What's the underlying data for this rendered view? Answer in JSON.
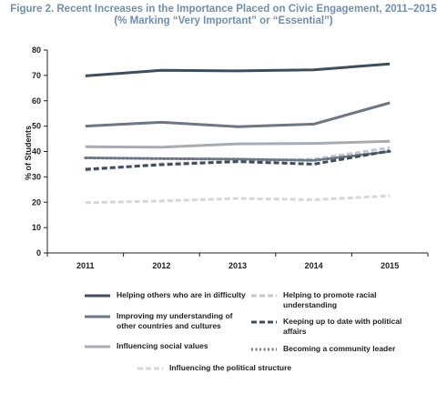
{
  "chart_data": {
    "type": "line",
    "title_line1": "Figure 2. Recent Increases in the Importance Placed on Civic Engagement, 2011–2015",
    "title_line2": "(% Marking “Very Important” or “Essential”)",
    "ylabel": "% of Students",
    "xlabel": "",
    "categories": [
      "2011",
      "2012",
      "2013",
      "2014",
      "2015"
    ],
    "ylim": [
      0,
      80
    ],
    "yticks": [
      "0",
      "10",
      "20",
      "30",
      "40",
      "50",
      "60",
      "70",
      "80"
    ],
    "grid": false,
    "legend_placement": "bottom",
    "series": [
      {
        "name": "Helping others who are in difficulty",
        "values": [
          69.8,
          72.0,
          71.8,
          72.2,
          74.5
        ],
        "color": "#3d4e60",
        "style": "solid"
      },
      {
        "name": "Improving my understanding of other countries and cultures",
        "values": [
          50.0,
          51.5,
          49.8,
          50.8,
          59.2
        ],
        "color": "#6c7686",
        "style": "solid"
      },
      {
        "name": "Influencing social values",
        "values": [
          41.9,
          41.7,
          43.0,
          43.2,
          44.0
        ],
        "color": "#a7abb2",
        "style": "solid"
      },
      {
        "name": "Helping to promote racial understanding",
        "values": [
          32.5,
          35.2,
          36.2,
          37.0,
          41.5
        ],
        "color": "#c4c7cc",
        "style": "dash"
      },
      {
        "name": "Keeping up to date with political affairs",
        "values": [
          33.0,
          34.8,
          36.0,
          35.0,
          40.2
        ],
        "color": "#3d4e60",
        "style": "dash"
      },
      {
        "name": "Becoming a community leader",
        "values": [
          37.5,
          37.2,
          37.0,
          36.5,
          40.0
        ],
        "color": "#6c7686",
        "style": "dot"
      },
      {
        "name": "Influencing the political structure",
        "values": [
          19.8,
          20.5,
          21.5,
          21.0,
          22.5
        ],
        "color": "#d5d7da",
        "style": "dash"
      }
    ]
  }
}
